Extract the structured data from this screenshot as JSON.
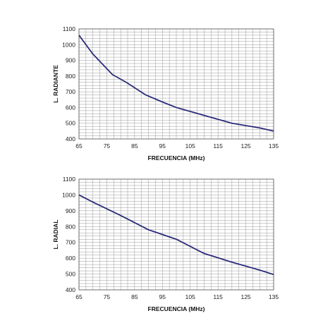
{
  "chart_data": [
    {
      "type": "line",
      "xlabel": "FRECUENCIA (MHz)",
      "ylabel": "L. RADIANTE",
      "xlim": [
        65,
        135
      ],
      "ylim": [
        400,
        1100
      ],
      "xticks": [
        65,
        75,
        85,
        95,
        105,
        115,
        125,
        135
      ],
      "yticks": [
        400,
        500,
        600,
        700,
        800,
        900,
        1000,
        1100
      ],
      "grid": true,
      "line_color": "#2b2b7a",
      "series": [
        {
          "x": [
            65,
            70,
            77,
            82,
            89,
            95,
            100,
            105,
            110,
            120,
            130,
            135
          ],
          "y": [
            1060,
            940,
            810,
            760,
            680,
            635,
            600,
            575,
            550,
            500,
            470,
            450
          ]
        }
      ]
    },
    {
      "type": "line",
      "xlabel": "FRECUENCIA (MHz)",
      "ylabel": "L. RADIAL",
      "xlim": [
        65,
        135
      ],
      "ylim": [
        400,
        1100
      ],
      "xticks": [
        65,
        75,
        85,
        95,
        105,
        115,
        125,
        135
      ],
      "yticks": [
        400,
        500,
        600,
        700,
        800,
        900,
        1000,
        1100
      ],
      "grid": true,
      "line_color": "#2b2b7a",
      "series": [
        {
          "x": [
            65,
            70,
            80,
            90,
            100,
            110,
            120,
            130,
            135
          ],
          "y": [
            1000,
            955,
            870,
            780,
            720,
            630,
            575,
            525,
            497
          ]
        }
      ]
    }
  ]
}
